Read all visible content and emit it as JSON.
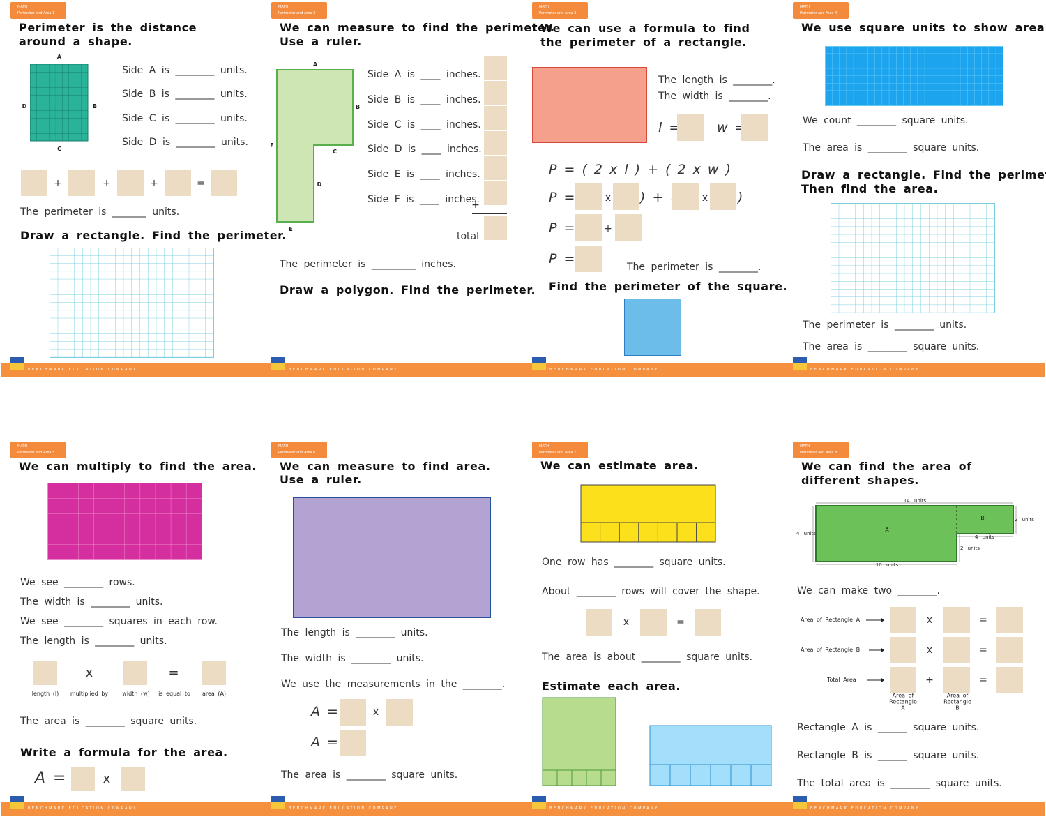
{
  "badge": "MATH",
  "footer": "BENCHMARK EDUCATION COMPANY",
  "panels": [
    {
      "tab": "Perimeter and Area 1",
      "title": [
        "Perimeter is the distance",
        "around a shape."
      ],
      "labels": [
        "A",
        "B",
        "C",
        "D"
      ],
      "text": [
        "Side A is ________ units.",
        "Side B is ________ units.",
        "Side C is ________ units.",
        "Side D is ________ units.",
        "The perimeter is _______ units."
      ],
      "symbols": [
        "+",
        "+",
        "+",
        "="
      ],
      "task": [
        "Draw a rectangle. Find the perimeter."
      ]
    },
    {
      "tab": "Perimeter and Area 2",
      "title": [
        "We can measure to find the perimeter.",
        "Use a ruler."
      ],
      "labels": [
        "A",
        "B",
        "C",
        "D",
        "E",
        "F"
      ],
      "text": [
        "Side A is ____ inches.",
        "Side B is ____ inches.",
        "Side C is ____ inches.",
        "Side D is ____ inches.",
        "Side E is ____ inches.",
        "Side F is ____ inches.",
        "total",
        "The perimeter is _________ inches."
      ],
      "symbols": [
        "+"
      ],
      "task": [
        "Draw a polygon. Find the perimeter."
      ]
    },
    {
      "tab": "Perimeter and Area 3",
      "title": [
        "We can use a formula to find",
        "the perimeter of a rectangle."
      ],
      "text": [
        "The length is ________.",
        "The width is ________.",
        "The perimeter is ________."
      ],
      "symbols": [
        "l =",
        "w =",
        "P = ( 2 x l ) + ( 2 x w )",
        "P = (",
        "x",
        ") + (",
        "x",
        ")",
        "P =",
        "+",
        "P ="
      ],
      "task": [
        "Find the perimeter of the square."
      ]
    },
    {
      "tab": "Perimeter and Area 4",
      "title": [
        "We use square units to show area."
      ],
      "text": [
        "We count ________ square units.",
        "The area is ________ square units.",
        "The perimeter is ________ units.",
        "The area is ________ square units."
      ],
      "task": [
        "Draw a rectangle. Find the perimeter.",
        "Then find the area."
      ]
    },
    {
      "tab": "Perimeter and Area 5",
      "title": [
        "We can multiply to find the area."
      ],
      "text": [
        "We see ________ rows.",
        "The width is ________ units.",
        "We see ________ squares in each row.",
        "The length is ________ units.",
        "The area is ________ square units."
      ],
      "symbols": [
        "x",
        "=",
        "A =",
        "x"
      ],
      "labels": [
        "length (l)",
        "multiplied by",
        "width (w)",
        "is equal to",
        "area (A)"
      ],
      "task": [
        "Write a formula for the area."
      ]
    },
    {
      "tab": "Perimeter and Area 6",
      "title": [
        "We can measure to find area.",
        "Use a ruler."
      ],
      "text": [
        "The length is ________ units.",
        "The width is ________ units.",
        "We use the measurements in the ________.",
        "The area is ________ square units."
      ],
      "symbols": [
        "A =",
        "x",
        "A ="
      ]
    },
    {
      "tab": "Perimeter and Area 7",
      "title": [
        "We can estimate area."
      ],
      "text": [
        "One row has ________ square units.",
        "About ________ rows will cover the shape.",
        "The area is about ________ square units."
      ],
      "symbols": [
        "x",
        "="
      ],
      "task": [
        "Estimate each area."
      ]
    },
    {
      "tab": "Perimeter and Area 8",
      "title": [
        "We can find the area of",
        "different shapes."
      ],
      "labels": [
        "14 units",
        "2 units",
        "4 units",
        "A",
        "B",
        "4 units",
        "2 units",
        "10 units"
      ],
      "text": [
        "We can make two ________.",
        "Rectangle A is ______ square units.",
        "Rectangle B is ______ square units.",
        "The total area is ________ square units."
      ],
      "rows": [
        "Area of Rectangle A",
        "Area of Rectangle B",
        "Total Area"
      ],
      "symbols": [
        "x",
        "=",
        "x",
        "=",
        "+",
        "="
      ],
      "captions": [
        "Area of Rectangle A",
        "Area of Rectangle B"
      ]
    }
  ]
}
